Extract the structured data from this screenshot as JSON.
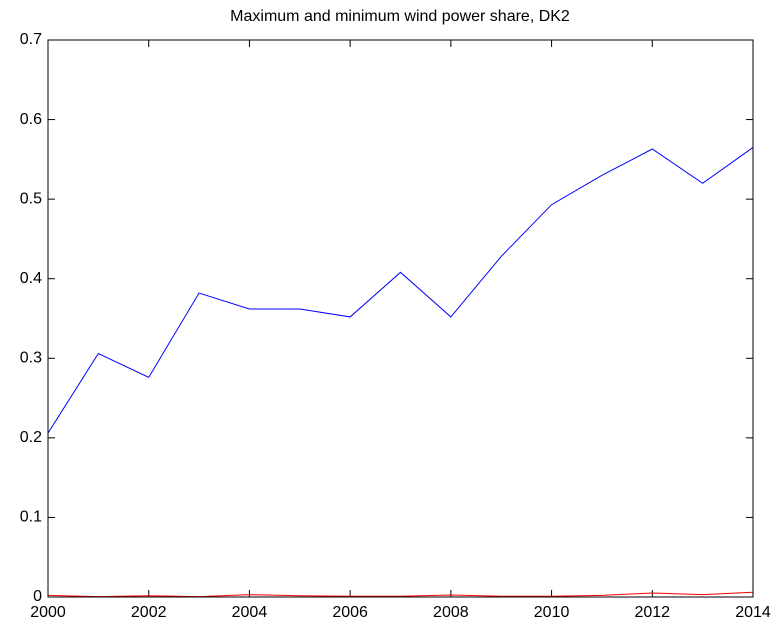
{
  "chart_data": {
    "type": "line",
    "title": "Maximum and minimum wind power share, DK2",
    "x": [
      2000,
      2001,
      2002,
      2003,
      2004,
      2005,
      2006,
      2007,
      2008,
      2009,
      2010,
      2011,
      2012,
      2013,
      2014
    ],
    "series": [
      {
        "color": "#0000ff",
        "values": [
          0.206,
          0.306,
          0.276,
          0.382,
          0.362,
          0.362,
          0.352,
          0.408,
          0.352,
          0.428,
          0.493,
          0.53,
          0.563,
          0.52,
          0.565
        ]
      },
      {
        "color": "#ff0000",
        "values": [
          0.002,
          0.0005,
          0.0015,
          0.0005,
          0.003,
          0.0015,
          0.001,
          0.001,
          0.0025,
          0.001,
          0.001,
          0.002,
          0.005,
          0.003,
          0.006
        ]
      }
    ],
    "xlim": [
      2000,
      2014
    ],
    "xticks": [
      2000,
      2002,
      2004,
      2006,
      2008,
      2010,
      2012,
      2014
    ],
    "ylim": [
      0,
      0.7
    ],
    "yticks": [
      0,
      0.1,
      0.2,
      0.3,
      0.4,
      0.5,
      0.6,
      0.7
    ],
    "grid": false
  }
}
